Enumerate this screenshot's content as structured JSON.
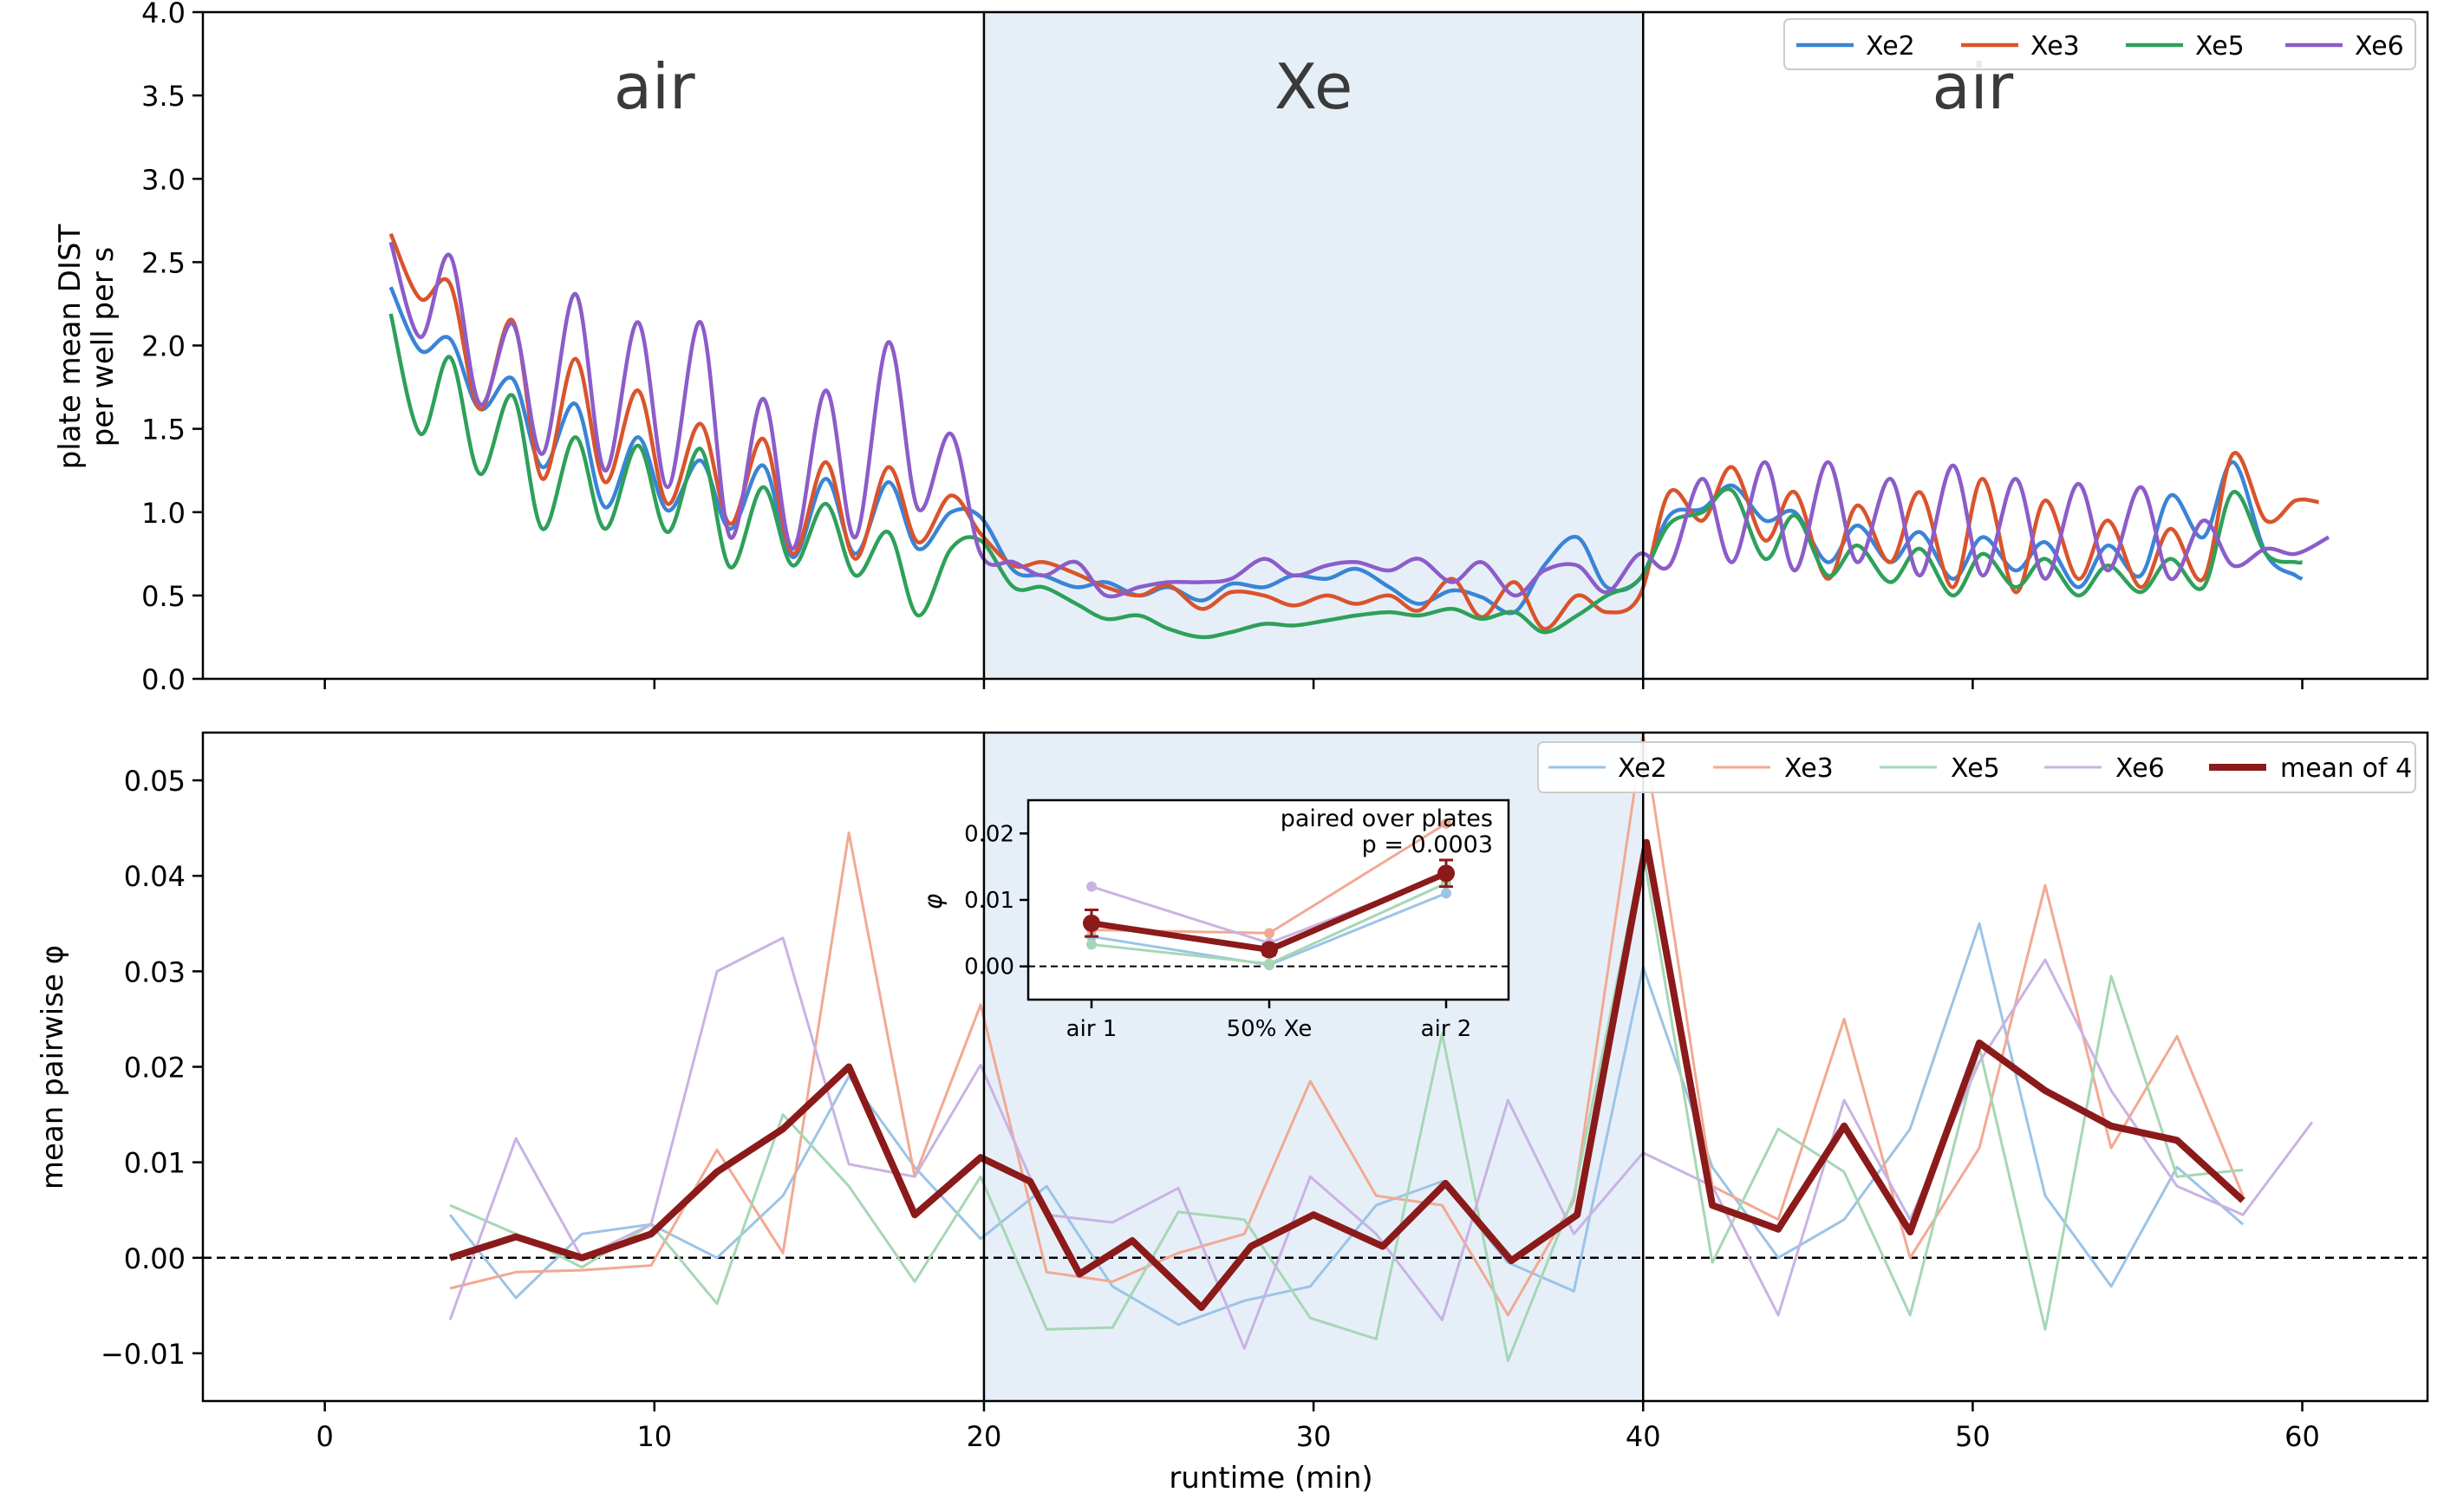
{
  "chart_data": [
    {
      "type": "line",
      "title": "",
      "xlabel": "",
      "ylabel_lines": [
        "plate mean DIST",
        "per well per s"
      ],
      "xlim": [
        -3.7,
        63.8
      ],
      "ylim": [
        0,
        4.0
      ],
      "xticks": [
        0,
        10,
        20,
        30,
        40,
        50,
        60
      ],
      "yticks": [
        0.0,
        0.5,
        1.0,
        1.5,
        2.0,
        2.5,
        3.0,
        3.5,
        4.0
      ],
      "ytick_labels": [
        "0.0",
        "0.5",
        "1.0",
        "1.5",
        "2.0",
        "2.5",
        "3.0",
        "3.5",
        "4.0"
      ],
      "shaded_region": [
        20,
        40
      ],
      "vlines": [
        20,
        40
      ],
      "phase_labels": [
        {
          "text": "air",
          "x": 10
        },
        {
          "text": "Xe",
          "x": 30
        },
        {
          "text": "air",
          "x": 50
        }
      ],
      "legend_position": "top-right",
      "series": [
        {
          "name": "Xe2",
          "color": "#3a84d6",
          "x": [
            2.0,
            2.9,
            3.8,
            4.7,
            5.7,
            6.6,
            7.6,
            8.5,
            9.5,
            10.4,
            11.4,
            12.3,
            13.3,
            14.2,
            15.2,
            16.1,
            17.1,
            18.0,
            19.0,
            19.9,
            20.9,
            21.8,
            22.8,
            23.7,
            24.7,
            25.6,
            26.6,
            27.5,
            28.5,
            29.4,
            30.4,
            31.3,
            32.3,
            33.2,
            34.2,
            35.1,
            36.1,
            37.0,
            38.0,
            38.9,
            39.9,
            40.8,
            41.8,
            42.7,
            43.7,
            44.6,
            45.6,
            46.5,
            47.5,
            48.4,
            49.4,
            50.3,
            51.3,
            52.2,
            53.2,
            54.1,
            55.1,
            56.0,
            57.0,
            57.9,
            58.9,
            59.8,
            60.0
          ],
          "values": [
            2.35,
            1.97,
            2.04,
            1.62,
            1.8,
            1.27,
            1.65,
            1.03,
            1.45,
            1.01,
            1.31,
            0.9,
            1.28,
            0.73,
            1.2,
            0.75,
            1.18,
            0.78,
            1.0,
            0.97,
            0.65,
            0.62,
            0.55,
            0.58,
            0.5,
            0.55,
            0.47,
            0.57,
            0.55,
            0.62,
            0.6,
            0.66,
            0.55,
            0.45,
            0.53,
            0.49,
            0.4,
            0.68,
            0.85,
            0.55,
            0.6,
            0.98,
            1.02,
            1.16,
            0.95,
            1.0,
            0.7,
            0.92,
            0.7,
            0.88,
            0.6,
            0.85,
            0.65,
            0.82,
            0.55,
            0.8,
            0.62,
            1.1,
            0.85,
            1.3,
            0.75,
            0.62,
            0.6
          ]
        },
        {
          "name": "Xe3",
          "color": "#d9542c",
          "x": [
            2.0,
            2.9,
            3.8,
            4.7,
            5.7,
            6.6,
            7.6,
            8.5,
            9.5,
            10.4,
            11.4,
            12.3,
            13.3,
            14.2,
            15.2,
            16.1,
            17.1,
            18.0,
            19.0,
            19.9,
            20.9,
            21.8,
            22.8,
            23.7,
            24.7,
            25.6,
            26.6,
            27.5,
            28.5,
            29.4,
            30.4,
            31.3,
            32.3,
            33.2,
            34.2,
            35.1,
            36.1,
            37.0,
            38.0,
            38.9,
            39.9,
            40.8,
            41.8,
            42.7,
            43.7,
            44.6,
            45.6,
            46.5,
            47.5,
            48.4,
            49.4,
            50.3,
            51.3,
            52.2,
            53.2,
            54.1,
            55.1,
            56.0,
            57.0,
            57.9,
            58.9,
            59.8,
            60.5
          ],
          "values": [
            2.67,
            2.28,
            2.37,
            1.62,
            2.15,
            1.2,
            1.92,
            1.18,
            1.73,
            1.05,
            1.53,
            0.93,
            1.44,
            0.75,
            1.3,
            0.72,
            1.27,
            0.82,
            1.1,
            0.87,
            0.68,
            0.7,
            0.63,
            0.55,
            0.5,
            0.56,
            0.42,
            0.52,
            0.5,
            0.44,
            0.5,
            0.45,
            0.5,
            0.41,
            0.6,
            0.37,
            0.58,
            0.3,
            0.5,
            0.4,
            0.5,
            1.12,
            0.95,
            1.27,
            0.83,
            1.12,
            0.6,
            1.04,
            0.7,
            1.12,
            0.55,
            1.2,
            0.52,
            1.07,
            0.6,
            0.95,
            0.55,
            0.9,
            0.6,
            1.35,
            0.95,
            1.07,
            1.06
          ]
        },
        {
          "name": "Xe5",
          "color": "#2ea05a",
          "x": [
            2.0,
            2.9,
            3.8,
            4.7,
            5.7,
            6.6,
            7.6,
            8.5,
            9.5,
            10.4,
            11.4,
            12.3,
            13.3,
            14.2,
            15.2,
            16.1,
            17.1,
            18.0,
            19.0,
            19.9,
            20.9,
            21.8,
            22.8,
            23.7,
            24.7,
            25.6,
            26.6,
            27.5,
            28.5,
            29.4,
            30.4,
            31.3,
            32.3,
            33.2,
            34.2,
            35.1,
            36.1,
            37.0,
            38.0,
            38.9,
            39.9,
            40.8,
            41.8,
            42.7,
            43.7,
            44.6,
            45.6,
            46.5,
            47.5,
            48.4,
            49.4,
            50.3,
            51.3,
            52.2,
            53.2,
            54.1,
            55.1,
            56.0,
            57.0,
            57.9,
            58.9,
            59.8,
            60.0
          ],
          "values": [
            2.19,
            1.47,
            1.93,
            1.23,
            1.7,
            0.9,
            1.45,
            0.9,
            1.4,
            0.88,
            1.38,
            0.67,
            1.15,
            0.68,
            1.05,
            0.62,
            0.88,
            0.38,
            0.78,
            0.83,
            0.55,
            0.55,
            0.45,
            0.36,
            0.38,
            0.3,
            0.25,
            0.28,
            0.33,
            0.32,
            0.35,
            0.38,
            0.4,
            0.38,
            0.42,
            0.36,
            0.4,
            0.28,
            0.38,
            0.5,
            0.6,
            0.93,
            1.0,
            1.13,
            0.72,
            0.98,
            0.62,
            0.8,
            0.58,
            0.78,
            0.5,
            0.75,
            0.55,
            0.72,
            0.5,
            0.68,
            0.52,
            0.72,
            0.55,
            1.12,
            0.75,
            0.7,
            0.7
          ]
        },
        {
          "name": "Xe6",
          "color": "#8c5cc9",
          "x": [
            2.0,
            2.9,
            3.8,
            4.7,
            5.7,
            6.6,
            7.6,
            8.5,
            9.5,
            10.4,
            11.4,
            12.3,
            13.3,
            14.2,
            15.2,
            16.1,
            17.1,
            18.0,
            19.0,
            19.9,
            20.9,
            21.8,
            22.8,
            23.7,
            24.7,
            25.6,
            26.6,
            27.5,
            28.5,
            29.4,
            30.4,
            31.3,
            32.3,
            33.2,
            34.2,
            35.1,
            36.1,
            37.0,
            38.0,
            38.9,
            39.9,
            40.8,
            41.8,
            42.7,
            43.7,
            44.6,
            45.6,
            46.5,
            47.5,
            48.4,
            49.4,
            50.3,
            51.3,
            52.2,
            53.2,
            54.1,
            55.1,
            56.0,
            57.0,
            57.9,
            58.9,
            59.8,
            60.8
          ],
          "values": [
            2.62,
            2.05,
            2.54,
            1.65,
            2.13,
            1.35,
            2.31,
            1.25,
            2.14,
            1.15,
            2.14,
            0.85,
            1.68,
            0.78,
            1.73,
            0.85,
            2.02,
            1.02,
            1.47,
            0.75,
            0.7,
            0.62,
            0.7,
            0.5,
            0.55,
            0.58,
            0.58,
            0.6,
            0.72,
            0.62,
            0.68,
            0.7,
            0.65,
            0.72,
            0.58,
            0.7,
            0.5,
            0.65,
            0.68,
            0.52,
            0.75,
            0.68,
            1.2,
            0.7,
            1.3,
            0.65,
            1.3,
            0.7,
            1.2,
            0.62,
            1.28,
            0.62,
            1.2,
            0.6,
            1.17,
            0.65,
            1.15,
            0.6,
            0.95,
            0.68,
            0.78,
            0.75,
            0.85
          ]
        }
      ]
    },
    {
      "type": "line",
      "title": "",
      "xlabel": "runtime (min)",
      "ylabel": "mean pairwise φ",
      "xlim": [
        -3.7,
        63.8
      ],
      "ylim": [
        -0.015,
        0.055
      ],
      "xticks": [
        0,
        10,
        20,
        30,
        40,
        50,
        60
      ],
      "yticks": [
        -0.01,
        0.0,
        0.01,
        0.02,
        0.03,
        0.04,
        0.05
      ],
      "ytick_labels": [
        "−0.01",
        "0.00",
        "0.01",
        "0.02",
        "0.03",
        "0.04",
        "0.05"
      ],
      "shaded_region": [
        20,
        40
      ],
      "vlines": [
        20,
        40
      ],
      "hline_dashed": 0,
      "legend_position": "top-right",
      "series": [
        {
          "name": "Xe2",
          "color": "#9bc4e8",
          "x": [
            3.8,
            5.8,
            7.8,
            9.9,
            11.9,
            13.9,
            15.9,
            17.9,
            19.9,
            21.9,
            23.9,
            25.9,
            27.9,
            29.9,
            31.9,
            33.9,
            35.9,
            37.9,
            40.0,
            42.1,
            44.1,
            46.1,
            48.1,
            50.2,
            52.2,
            54.2,
            56.2,
            58.2
          ],
          "values": [
            0.0045,
            -0.0042,
            0.0025,
            0.0035,
            0.0,
            0.0065,
            0.019,
            0.0095,
            0.002,
            0.0075,
            -0.003,
            -0.007,
            -0.0045,
            -0.003,
            0.0055,
            0.008,
            -0.0005,
            -0.0035,
            0.0305,
            0.0095,
            0.0,
            0.004,
            0.0135,
            0.035,
            0.0065,
            -0.003,
            0.0095,
            0.0035
          ]
        },
        {
          "name": "Xe3",
          "color": "#f2a992",
          "x": [
            3.8,
            5.8,
            7.8,
            9.9,
            11.9,
            13.9,
            15.9,
            17.9,
            19.9,
            21.9,
            23.9,
            25.9,
            27.9,
            29.9,
            31.9,
            33.9,
            35.9,
            37.9,
            40.0,
            42.1,
            44.1,
            46.1,
            48.1,
            50.2,
            52.2,
            54.2,
            56.2,
            58.2
          ],
          "values": [
            -0.0032,
            -0.0015,
            -0.0013,
            -0.0008,
            0.0113,
            0.0005,
            0.0445,
            0.0085,
            0.0265,
            -0.0015,
            -0.0025,
            0.0005,
            0.0025,
            0.0185,
            0.0065,
            0.0055,
            -0.006,
            0.006,
            0.055,
            0.0075,
            0.004,
            0.025,
            0.0,
            0.0115,
            0.039,
            0.0115,
            0.0232,
            0.0065
          ]
        },
        {
          "name": "Xe5",
          "color": "#a6d7b5",
          "x": [
            3.8,
            5.8,
            7.8,
            9.9,
            11.9,
            13.9,
            15.9,
            17.9,
            19.9,
            21.9,
            23.9,
            25.9,
            27.9,
            29.9,
            31.9,
            33.9,
            35.9,
            37.9,
            40.0,
            42.1,
            44.1,
            46.1,
            48.1,
            50.2,
            52.2,
            54.2,
            56.2,
            58.2
          ],
          "values": [
            0.0055,
            0.0025,
            -0.001,
            0.0035,
            -0.0048,
            0.015,
            0.0075,
            -0.0025,
            0.0085,
            -0.0075,
            -0.0073,
            0.0048,
            0.004,
            -0.0063,
            -0.0085,
            0.0235,
            -0.0108,
            0.0065,
            0.0425,
            -0.0005,
            0.0135,
            0.009,
            -0.006,
            0.022,
            -0.0075,
            0.0295,
            0.0085,
            0.0092
          ]
        },
        {
          "name": "Xe6",
          "color": "#c9b3e3",
          "x": [
            3.8,
            5.8,
            7.8,
            9.9,
            11.9,
            13.9,
            15.9,
            17.9,
            19.9,
            21.9,
            23.9,
            25.9,
            27.9,
            29.9,
            31.9,
            33.9,
            35.9,
            37.9,
            40.0,
            42.1,
            44.1,
            46.1,
            48.1,
            50.2,
            52.2,
            54.2,
            56.2,
            58.2,
            60.3
          ],
          "values": [
            -0.0065,
            0.0125,
            0.0,
            0.0035,
            0.03,
            0.0335,
            0.0098,
            0.0085,
            0.0202,
            0.0045,
            0.0037,
            0.0073,
            -0.0095,
            0.0085,
            0.0025,
            -0.0065,
            0.0165,
            0.0025,
            0.011,
            0.0075,
            -0.006,
            0.0165,
            0.004,
            0.0205,
            0.0312,
            0.0175,
            0.0075,
            0.0045,
            0.0142
          ]
        },
        {
          "name": "mean of 4",
          "color": "#8b1a1a",
          "x": [
            3.8,
            5.8,
            7.8,
            9.9,
            11.9,
            13.9,
            15.9,
            17.9,
            19.9,
            21.4,
            22.9,
            24.5,
            26.6,
            28.1,
            30.0,
            32.1,
            34.0,
            36.0,
            38.0,
            40.1,
            42.1,
            44.1,
            46.1,
            48.1,
            50.2,
            52.2,
            54.2,
            56.2,
            58.2
          ],
          "values": [
            0.0,
            0.0022,
            0.0,
            0.0025,
            0.009,
            0.0135,
            0.02,
            0.0045,
            0.0105,
            0.008,
            -0.0017,
            0.0018,
            -0.0052,
            0.0012,
            0.0045,
            0.0012,
            0.0078,
            -0.0003,
            0.0045,
            0.0435,
            0.0055,
            0.003,
            0.0138,
            0.0027,
            0.0225,
            0.0175,
            0.0138,
            0.0123,
            0.006
          ]
        }
      ]
    },
    {
      "type": "line",
      "title": "",
      "ylabel": "φ",
      "categories": [
        "air 1",
        "50% Xe",
        "air 2"
      ],
      "ylim": [
        -0.005,
        0.025
      ],
      "yticks": [
        0.0,
        0.01,
        0.02
      ],
      "ytick_labels": [
        "0.00",
        "0.01",
        "0.02"
      ],
      "hline_dashed": 0,
      "annotation": [
        "paired over plates",
        "p = 0.0003"
      ],
      "series": [
        {
          "name": "Xe2",
          "color": "#9bc4e8",
          "values": [
            0.0045,
            0.0002,
            0.011
          ]
        },
        {
          "name": "Xe3",
          "color": "#f2a992",
          "values": [
            0.0055,
            0.005,
            0.0215
          ]
        },
        {
          "name": "Xe5",
          "color": "#a6d7b5",
          "values": [
            0.0033,
            0.0004,
            0.0125
          ]
        },
        {
          "name": "Xe6",
          "color": "#c9b3e3",
          "values": [
            0.012,
            0.0035,
            0.0138
          ]
        },
        {
          "name": "mean",
          "color": "#8b1a1a",
          "values": [
            0.0065,
            0.0025,
            0.014
          ],
          "errors": [
            0.002,
            0.0008,
            0.002
          ]
        }
      ]
    }
  ],
  "legend_top": {
    "items": [
      "Xe2",
      "Xe3",
      "Xe5",
      "Xe6"
    ]
  },
  "legend_bottom": {
    "items": [
      "Xe2",
      "Xe3",
      "Xe5",
      "Xe6",
      "mean of 4"
    ]
  },
  "colors": {
    "shade": "#e6eff8",
    "axis": "#000000",
    "phase_text": "#3a3a3a"
  }
}
